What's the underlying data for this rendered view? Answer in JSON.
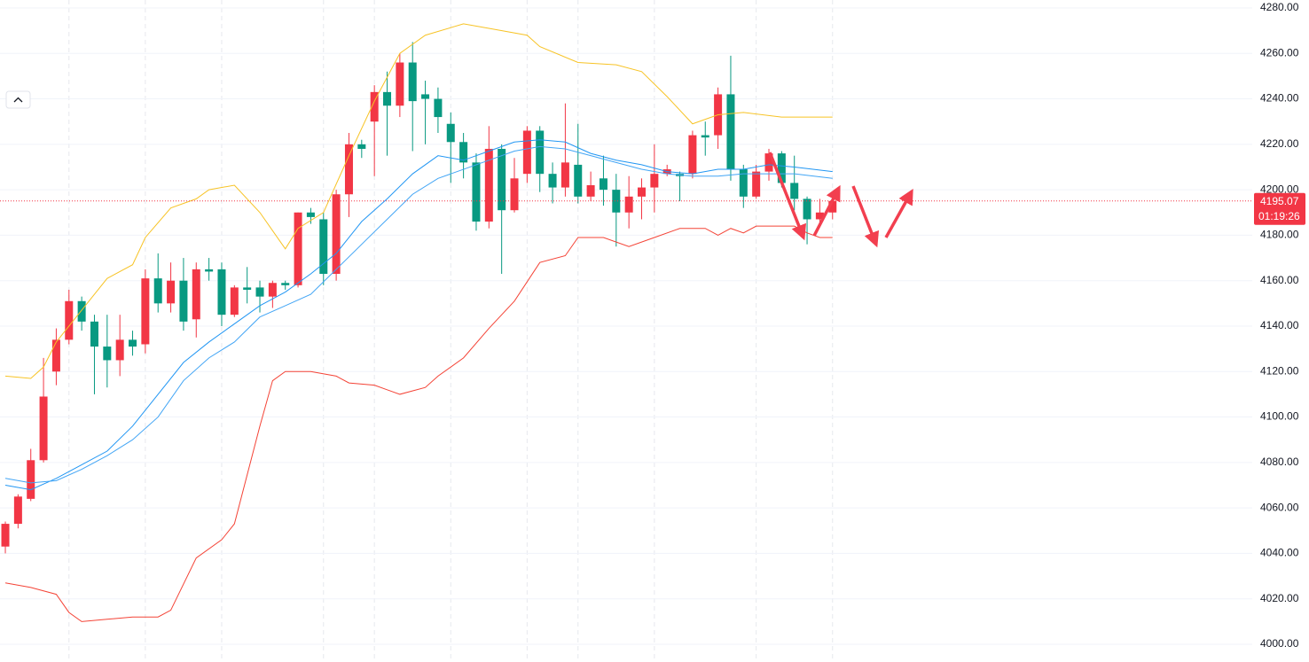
{
  "chart_data": {
    "type": "candlestick",
    "candles": {
      "up_color": "#f23645",
      "down_color": "#089981",
      "open": [
        4043,
        4053,
        4064,
        4081,
        4120,
        4134,
        4151,
        4142,
        4131,
        4125,
        4134,
        4132,
        4161,
        4150,
        4160,
        4143,
        4165,
        4165,
        4145,
        4157,
        4157,
        4153,
        4159,
        4158,
        4190,
        4187,
        4163,
        4198,
        4220,
        4230,
        4243,
        4237,
        4256,
        4242,
        4240,
        4229,
        4221,
        4212,
        4186,
        4218,
        4191,
        4207,
        4226,
        4207,
        4201,
        4211,
        4197,
        4205,
        4200,
        4190,
        4197,
        4201,
        4207,
        4207,
        4207,
        4224,
        4224,
        4242,
        4209,
        4197,
        4208,
        4216,
        4203,
        4196,
        4187,
        4190
      ],
      "high": [
        4054,
        4066,
        4086,
        4126,
        4139,
        4156,
        4153,
        4145,
        4145,
        4145,
        4138,
        4165,
        4172,
        4168,
        4170,
        4168,
        4170,
        4168,
        4158,
        4166,
        4160,
        4160,
        4160,
        4190,
        4192,
        4190,
        4200,
        4225,
        4222,
        4246,
        4252,
        4260,
        4265,
        4248,
        4245,
        4234,
        4225,
        4216,
        4228,
        4220,
        4214,
        4228,
        4228,
        4212,
        4238,
        4229,
        4208,
        4215,
        4207,
        4206,
        4205,
        4220,
        4211,
        4208,
        4226,
        4230,
        4245,
        4259,
        4211,
        4211,
        4218,
        4217,
        4215,
        4197,
        4196,
        4198
      ],
      "low": [
        4040,
        4051,
        4063,
        4080,
        4114,
        4132,
        4138,
        4110,
        4113,
        4118,
        4127,
        4128,
        4146,
        4146,
        4138,
        4135,
        4160,
        4140,
        4144,
        4150,
        4146,
        4148,
        4156,
        4157,
        4185,
        4158,
        4160,
        4188,
        4214,
        4206,
        4215,
        4232,
        4217,
        4220,
        4225,
        4203,
        4205,
        4182,
        4183,
        4163,
        4190,
        4203,
        4199,
        4194,
        4197,
        4194,
        4195,
        4193,
        4175,
        4183,
        4187,
        4190,
        4206,
        4195,
        4205,
        4215,
        4218,
        4204,
        4192,
        4196,
        4204,
        4201,
        4191,
        4176,
        4185,
        4187
      ],
      "close": [
        4053,
        4065,
        4081,
        4109,
        4134,
        4151,
        4142,
        4131,
        4125,
        4134,
        4131,
        4161,
        4150,
        4160,
        4142,
        4165,
        4164,
        4145,
        4157,
        4156,
        4153,
        4159,
        4158,
        4190,
        4188,
        4163,
        4198,
        4220,
        4218,
        4243,
        4237,
        4256,
        4239,
        4240,
        4232,
        4221,
        4212,
        4186,
        4218,
        4191,
        4205,
        4226,
        4207,
        4201,
        4212,
        4197,
        4202,
        4200,
        4190,
        4197,
        4201,
        4207,
        4209,
        4206,
        4224,
        4223,
        4242,
        4209,
        4197,
        4208,
        4216,
        4203,
        4196,
        4187,
        4190,
        4195.07
      ]
    },
    "lines": [
      {
        "color": "#f7c325",
        "x": [
          0,
          2,
          3,
          4,
          5,
          7,
          8,
          10,
          11,
          13,
          15,
          16,
          18,
          20,
          22,
          23,
          25,
          27,
          29,
          31,
          33,
          36,
          38,
          41,
          42,
          45,
          48,
          50,
          52,
          54,
          56,
          58,
          61,
          65
        ],
        "values": [
          4118,
          4117,
          4122,
          4133,
          4140,
          4154,
          4161,
          4167,
          4179,
          4192,
          4196,
          4200,
          4202,
          4190,
          4174,
          4183,
          4190,
          4215,
          4239,
          4260,
          4268,
          4273,
          4271,
          4268,
          4263,
          4256,
          4255,
          4252,
          4241,
          4229,
          4233,
          4234,
          4232,
          4232
        ]
      },
      {
        "color": "#f44336",
        "x": [
          0,
          2,
          4,
          5,
          6,
          8,
          10,
          12,
          13,
          15,
          17,
          18,
          20,
          21,
          22,
          24,
          26,
          27,
          29,
          30,
          31,
          33,
          34,
          36,
          38,
          40,
          42,
          44,
          45,
          47,
          49,
          51,
          53,
          55,
          56,
          57,
          58,
          59,
          62,
          63,
          64,
          65
        ],
        "values": [
          4027,
          4025,
          4022,
          4014,
          4010,
          4011,
          4012,
          4012,
          4015,
          4038,
          4046,
          4053,
          4096,
          4116,
          4120,
          4120,
          4118,
          4115,
          4114,
          4112,
          4110,
          4113,
          4118,
          4126,
          4139,
          4151,
          4168,
          4171,
          4179,
          4179,
          4175,
          4179,
          4183,
          4183,
          4180,
          4183,
          4181,
          4184,
          4184,
          4181,
          4179,
          4179
        ]
      },
      {
        "color": "#2196f3",
        "x": [
          0,
          2,
          4,
          6,
          8,
          10,
          12,
          14,
          16,
          18,
          20,
          22,
          24,
          26,
          28,
          30,
          32,
          34,
          36,
          38,
          40,
          42,
          44,
          46,
          48,
          50,
          52,
          54,
          56,
          58,
          60,
          62,
          65
        ],
        "values": [
          4070,
          4068,
          4073,
          4079,
          4085,
          4096,
          4110,
          4124,
          4133,
          4141,
          4149,
          4155,
          4163,
          4172,
          4186,
          4196,
          4207,
          4215,
          4213,
          4217,
          4221,
          4222,
          4221,
          4216,
          4213,
          4211,
          4208,
          4207,
          4209,
          4209,
          4211,
          4210,
          4208
        ]
      },
      {
        "color": "#42a5f5",
        "x": [
          0,
          2,
          4,
          6,
          8,
          10,
          12,
          14,
          16,
          18,
          20,
          22,
          24,
          26,
          28,
          30,
          32,
          34,
          36,
          38,
          40,
          42,
          44,
          46,
          48,
          50,
          52,
          54,
          56,
          58,
          60,
          62,
          65
        ],
        "values": [
          4073,
          4071,
          4072,
          4077,
          4083,
          4090,
          4100,
          4116,
          4126,
          4133,
          4144,
          4149,
          4154,
          4165,
          4176,
          4187,
          4198,
          4205,
          4209,
          4213,
          4217,
          4219,
          4218,
          4215,
          4212,
          4209,
          4207,
          4206,
          4206,
          4207,
          4207,
          4207,
          4205
        ]
      }
    ],
    "xlim": [
      -0.42,
      97.98
    ],
    "ylim": [
      3992.2,
      4283.5
    ],
    "yticks": [
      {
        "value": 4000,
        "label": "4000.00"
      },
      {
        "value": 4020,
        "label": "4020.00"
      },
      {
        "value": 4040,
        "label": "4040.00"
      },
      {
        "value": 4060,
        "label": "4060.00"
      },
      {
        "value": 4080,
        "label": "4080.00"
      },
      {
        "value": 4100,
        "label": "4100.00"
      },
      {
        "value": 4120,
        "label": "4120.00"
      },
      {
        "value": 4140,
        "label": "4140.00"
      },
      {
        "value": 4160,
        "label": "4160.00"
      },
      {
        "value": 4180,
        "label": "4180.00"
      },
      {
        "value": 4200,
        "label": "4200.00"
      },
      {
        "value": 4220,
        "label": "4220.00"
      },
      {
        "value": 4240,
        "label": "4240.00"
      },
      {
        "value": 4260,
        "label": "4260.00"
      },
      {
        "value": 4280,
        "label": "4280.00"
      }
    ],
    "grid": true,
    "last_price": 4195.07,
    "countdown": "01:19:26"
  }
}
